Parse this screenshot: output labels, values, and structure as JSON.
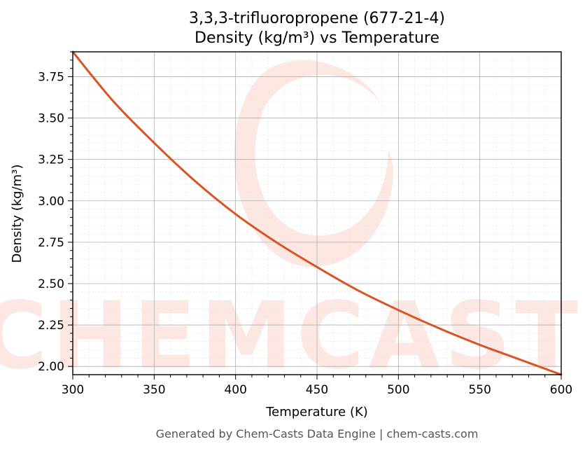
{
  "chart_data": {
    "type": "line",
    "title": "3,3,3-trifluoropropene (677-21-4)",
    "subtitle": "Density (kg/m³) vs Temperature",
    "xlabel": "Temperature (K)",
    "ylabel": "Density (kg/m³)",
    "xlim": [
      300,
      600
    ],
    "ylim": [
      1.95,
      3.9
    ],
    "x_ticks": [
      300,
      350,
      400,
      450,
      500,
      550,
      600
    ],
    "y_ticks": [
      2.0,
      2.25,
      2.5,
      2.75,
      3.0,
      3.25,
      3.5,
      3.75
    ],
    "x_tick_labels": [
      "300",
      "350",
      "400",
      "450",
      "500",
      "550",
      "600"
    ],
    "y_tick_labels": [
      "2.00",
      "2.25",
      "2.50",
      "2.75",
      "3.00",
      "3.25",
      "3.50",
      "3.75"
    ],
    "grid": true,
    "series": [
      {
        "color": "#d95323",
        "x": [
          300,
          325,
          350,
          375,
          400,
          425,
          450,
          475,
          500,
          525,
          550,
          575,
          600
        ],
        "y": [
          3.9,
          3.6,
          3.35,
          3.12,
          2.92,
          2.75,
          2.6,
          2.46,
          2.34,
          2.23,
          2.13,
          2.04,
          1.95
        ]
      }
    ]
  },
  "watermark": {
    "text": "CHEMCASTS",
    "color": "#fde3de"
  },
  "footer": {
    "text": "Generated by Chem-Casts Data Engine | chem-casts.com"
  }
}
